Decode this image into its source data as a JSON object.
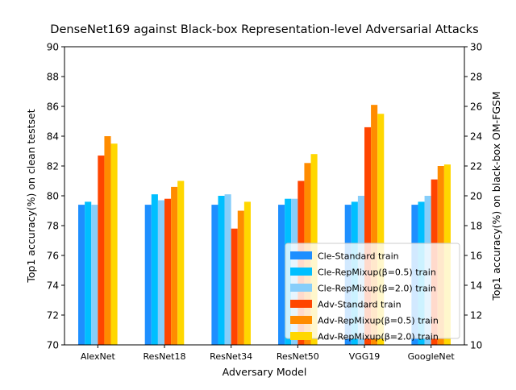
{
  "chart_data": {
    "type": "bar",
    "title": "DenseNet169 against Black-box Representation-level Adversarial Attacks",
    "xlabel": "Adversary Model",
    "ylabel": "Top1 accuracy(%) on clean testset",
    "y2label": "Top1 accuracy(%) on black-box OM-FGSM",
    "categories": [
      "AlexNet",
      "ResNet18",
      "ResNet34",
      "ResNet50",
      "VGG19",
      "GoogleNet"
    ],
    "ylim": [
      70,
      90
    ],
    "y2lim": [
      10,
      30
    ],
    "yticks": [
      "70",
      "72",
      "74",
      "76",
      "78",
      "80",
      "82",
      "84",
      "86",
      "88",
      "90"
    ],
    "y2ticks": [
      "10",
      "12",
      "14",
      "16",
      "18",
      "20",
      "22",
      "24",
      "26",
      "28",
      "30"
    ],
    "legend_position": "lower right",
    "series": [
      {
        "name": "Cle-Standard train",
        "axis": "left",
        "color": "#1e8fff",
        "values": [
          79.4,
          79.4,
          79.4,
          79.4,
          79.4,
          79.4
        ]
      },
      {
        "name": "Cle-RepMixup(β=0.5) train",
        "axis": "left",
        "color": "#00bfff",
        "values": [
          79.6,
          80.1,
          80.0,
          79.8,
          79.6,
          79.6
        ]
      },
      {
        "name": "Cle-RepMixup(β=2.0) train",
        "axis": "left",
        "color": "#87cefa",
        "values": [
          79.4,
          79.7,
          80.1,
          79.8,
          80.0,
          80.0
        ]
      },
      {
        "name": "Adv-Standard train",
        "axis": "right",
        "color": "#ff4500",
        "values": [
          22.7,
          19.8,
          17.8,
          21.0,
          24.6,
          21.1
        ]
      },
      {
        "name": "Adv-RepMixup(β=0.5) train",
        "axis": "right",
        "color": "#ff8c00",
        "values": [
          24.0,
          20.6,
          19.0,
          22.2,
          26.1,
          22.0
        ]
      },
      {
        "name": "Adv-RepMixup(β=2.0) train",
        "axis": "right",
        "color": "#ffd700",
        "values": [
          23.5,
          21.0,
          19.6,
          22.8,
          25.5,
          22.1
        ]
      }
    ]
  }
}
